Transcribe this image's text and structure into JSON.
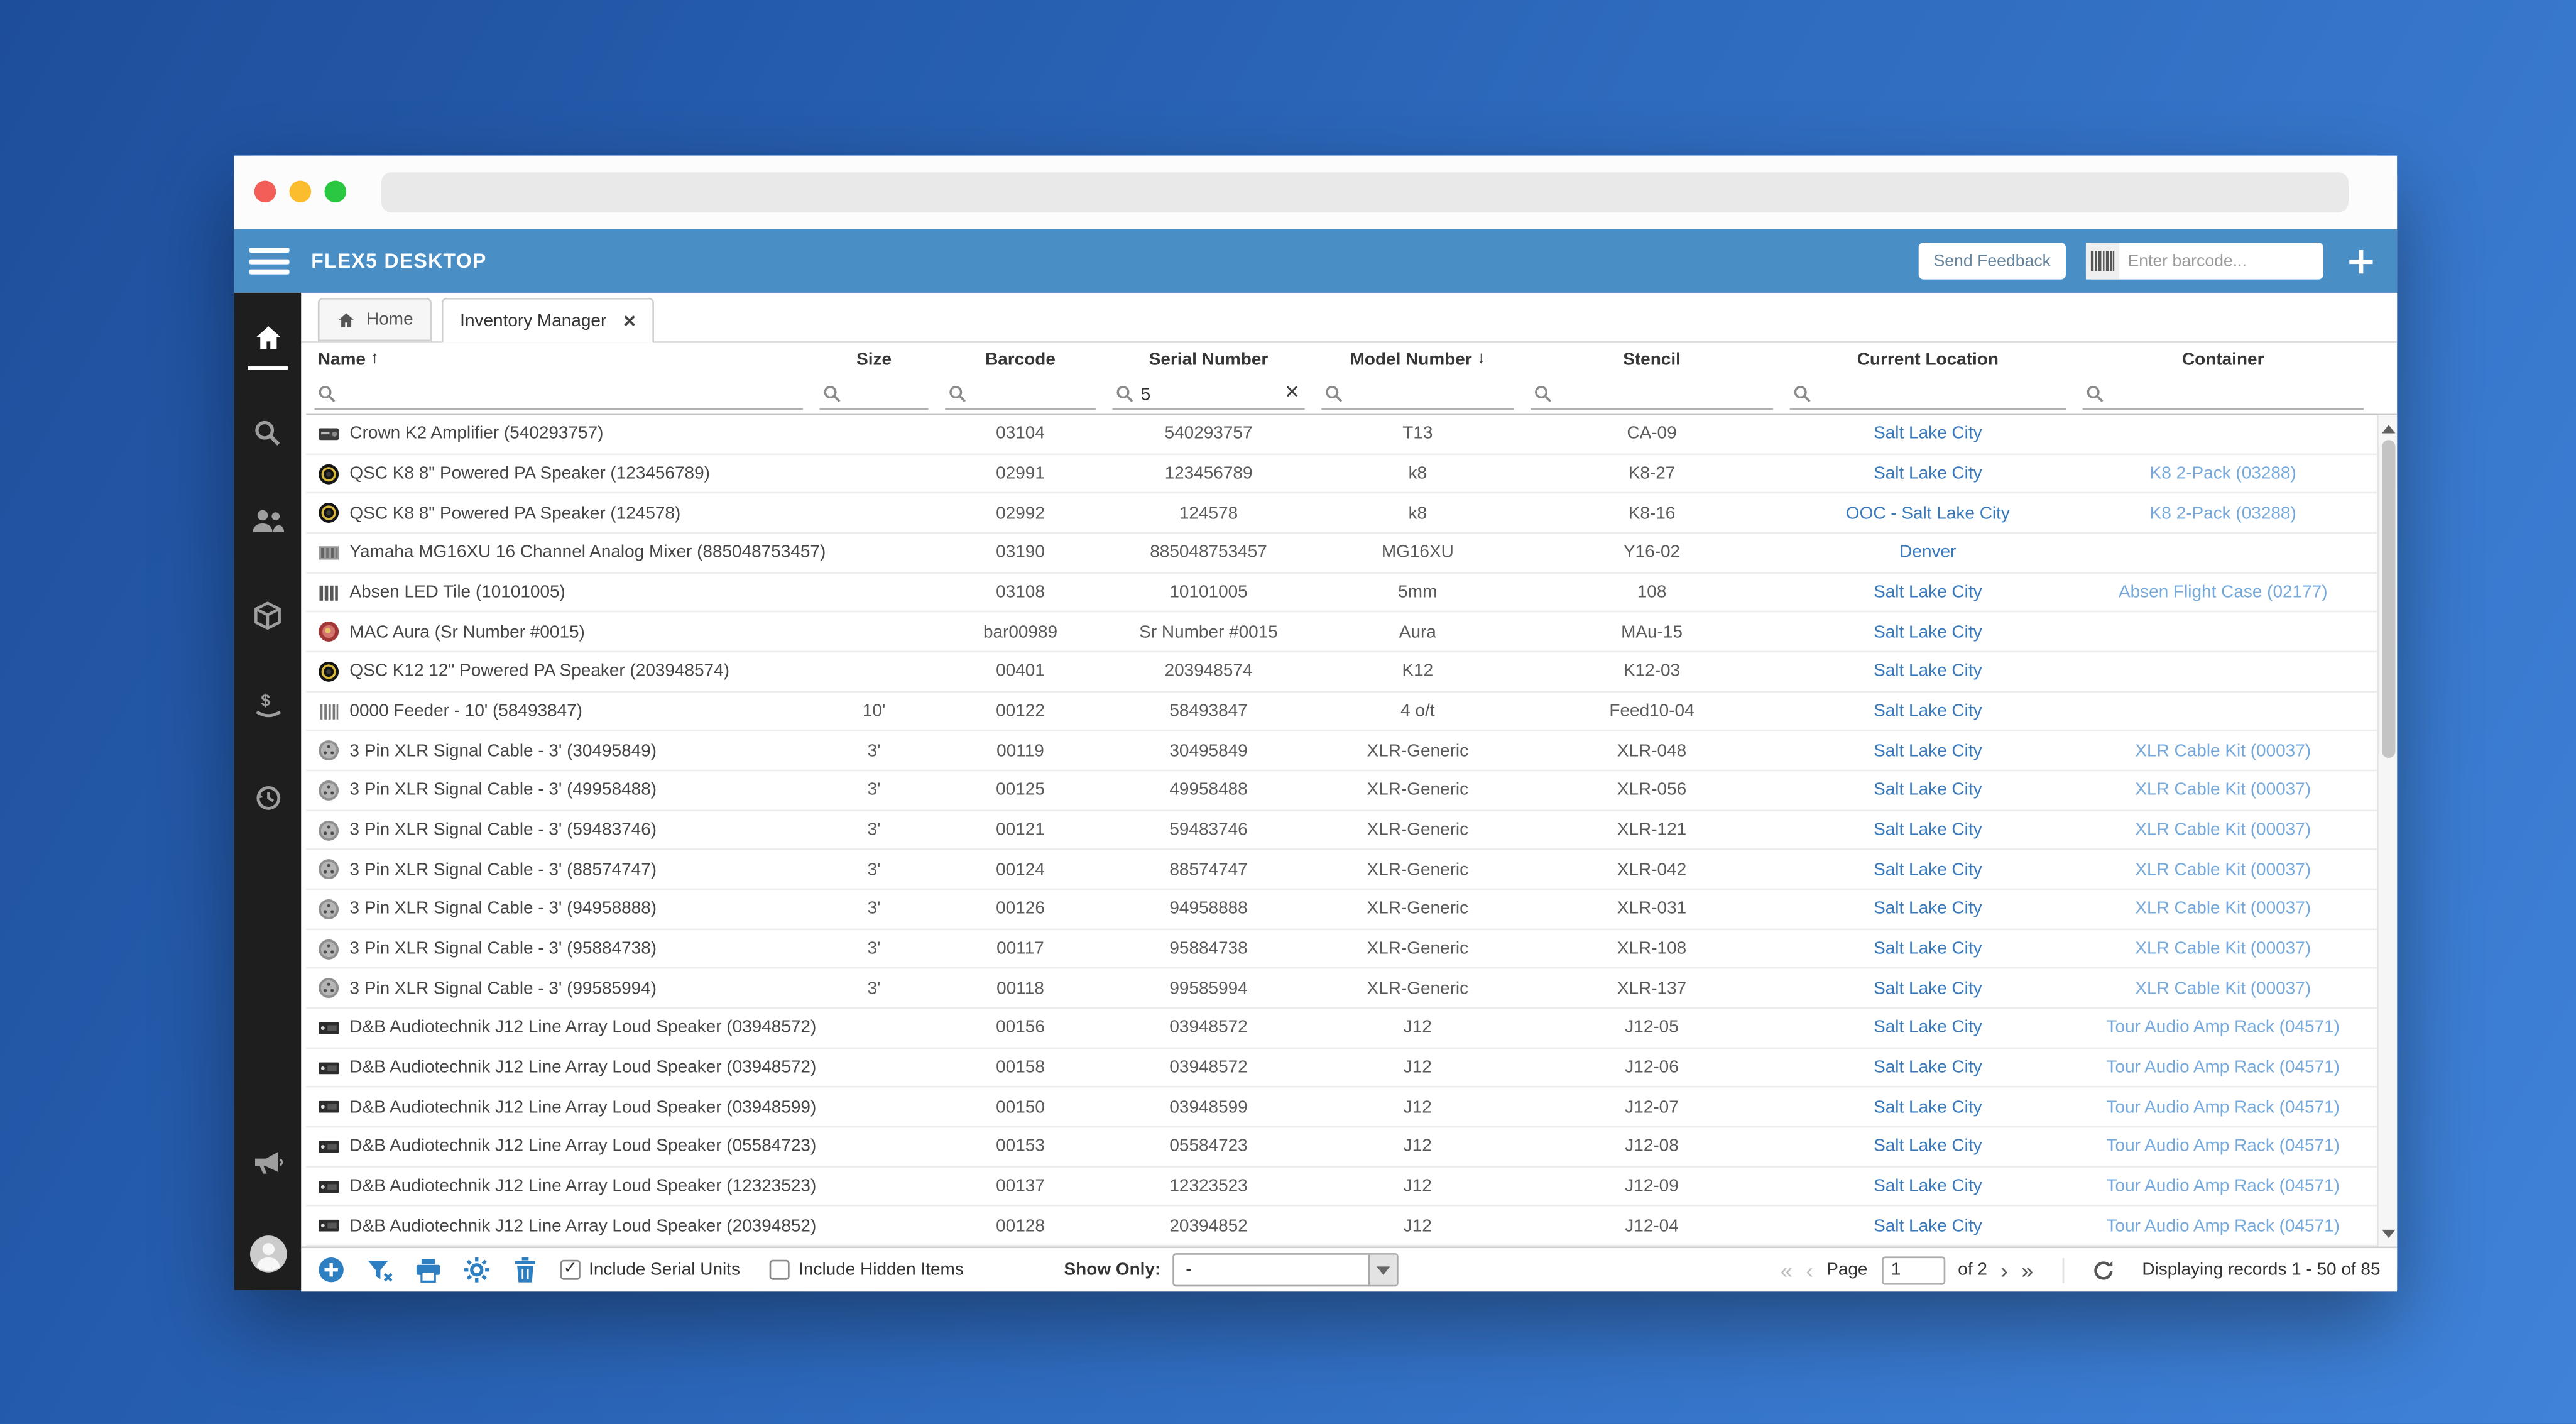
{
  "appbar": {
    "title": "FLEX5 DESKTOP",
    "send_feedback_label": "Send Feedback",
    "barcode_placeholder": "Enter barcode..."
  },
  "tabs": {
    "home": "Home",
    "inventory_manager": "Inventory Manager"
  },
  "table": {
    "columns": [
      {
        "label": "Name",
        "sort": "↑"
      },
      {
        "label": "Size",
        "sort": ""
      },
      {
        "label": "Barcode",
        "sort": ""
      },
      {
        "label": "Serial Number",
        "sort": ""
      },
      {
        "label": "Model Number",
        "sort": "↓"
      },
      {
        "label": "Stencil",
        "sort": ""
      },
      {
        "label": "Current Location",
        "sort": ""
      },
      {
        "label": "Container",
        "sort": ""
      }
    ],
    "filters": {
      "serial_number": "5"
    },
    "rows": [
      {
        "icon": "amp",
        "name": "Crown K2 Amplifier (540293757)",
        "size": "",
        "barcode": "03104",
        "serial": "540293757",
        "model": "T13",
        "stencil": "CA-09",
        "location": "Salt Lake City",
        "container": ""
      },
      {
        "icon": "qsc",
        "name": "QSC K8 8\" Powered PA Speaker (123456789)",
        "size": "",
        "barcode": "02991",
        "serial": "123456789",
        "model": "k8",
        "stencil": "K8-27",
        "location": "Salt Lake City",
        "container": "K8 2-Pack (03288)"
      },
      {
        "icon": "qsc",
        "name": "QSC K8 8\" Powered PA Speaker (124578)",
        "size": "",
        "barcode": "02992",
        "serial": "124578",
        "model": "k8",
        "stencil": "K8-16",
        "location": "OOC - Salt Lake City",
        "container": "K8 2-Pack (03288)"
      },
      {
        "icon": "mixer",
        "name": "Yamaha MG16XU 16 Channel Analog Mixer (885048753457)",
        "size": "",
        "barcode": "03190",
        "serial": "885048753457",
        "model": "MG16XU",
        "stencil": "Y16-02",
        "location": "Denver",
        "container": ""
      },
      {
        "icon": "led",
        "name": "Absen LED Tile (10101005)",
        "size": "",
        "barcode": "03108",
        "serial": "10101005",
        "model": "5mm",
        "stencil": "108",
        "location": "Salt Lake City",
        "container": "Absen Flight Case (02177)"
      },
      {
        "icon": "aura",
        "name": "MAC Aura (Sr Number #0015)",
        "size": "",
        "barcode": "bar00989",
        "serial": "Sr Number #0015",
        "model": "Aura",
        "stencil": "MAu-15",
        "location": "Salt Lake City",
        "container": ""
      },
      {
        "icon": "qsc",
        "name": "QSC K12 12\" Powered PA Speaker (203948574)",
        "size": "",
        "barcode": "00401",
        "serial": "203948574",
        "model": "K12",
        "stencil": "K12-03",
        "location": "Salt Lake City",
        "container": ""
      },
      {
        "icon": "feeder",
        "name": "0000 Feeder - 10' (58493847)",
        "size": "10'",
        "barcode": "00122",
        "serial": "58493847",
        "model": "4 o/t",
        "stencil": "Feed10-04",
        "location": "Salt Lake City",
        "container": ""
      },
      {
        "icon": "xlr",
        "name": "3 Pin XLR Signal Cable - 3' (30495849)",
        "size": "3'",
        "barcode": "00119",
        "serial": "30495849",
        "model": "XLR-Generic",
        "stencil": "XLR-048",
        "location": "Salt Lake City",
        "container": "XLR Cable Kit (00037)"
      },
      {
        "icon": "xlr",
        "name": "3 Pin XLR Signal Cable - 3' (49958488)",
        "size": "3'",
        "barcode": "00125",
        "serial": "49958488",
        "model": "XLR-Generic",
        "stencil": "XLR-056",
        "location": "Salt Lake City",
        "container": "XLR Cable Kit (00037)"
      },
      {
        "icon": "xlr",
        "name": "3 Pin XLR Signal Cable - 3' (59483746)",
        "size": "3'",
        "barcode": "00121",
        "serial": "59483746",
        "model": "XLR-Generic",
        "stencil": "XLR-121",
        "location": "Salt Lake City",
        "container": "XLR Cable Kit (00037)"
      },
      {
        "icon": "xlr",
        "name": "3 Pin XLR Signal Cable - 3' (88574747)",
        "size": "3'",
        "barcode": "00124",
        "serial": "88574747",
        "model": "XLR-Generic",
        "stencil": "XLR-042",
        "location": "Salt Lake City",
        "container": "XLR Cable Kit (00037)"
      },
      {
        "icon": "xlr",
        "name": "3 Pin XLR Signal Cable - 3' (94958888)",
        "size": "3'",
        "barcode": "00126",
        "serial": "94958888",
        "model": "XLR-Generic",
        "stencil": "XLR-031",
        "location": "Salt Lake City",
        "container": "XLR Cable Kit (00037)"
      },
      {
        "icon": "xlr",
        "name": "3 Pin XLR Signal Cable - 3' (95884738)",
        "size": "3'",
        "barcode": "00117",
        "serial": "95884738",
        "model": "XLR-Generic",
        "stencil": "XLR-108",
        "location": "Salt Lake City",
        "container": "XLR Cable Kit (00037)"
      },
      {
        "icon": "xlr",
        "name": "3 Pin XLR Signal Cable - 3' (99585994)",
        "size": "3'",
        "barcode": "00118",
        "serial": "99585994",
        "model": "XLR-Generic",
        "stencil": "XLR-137",
        "location": "Salt Lake City",
        "container": "XLR Cable Kit (00037)"
      },
      {
        "icon": "db",
        "name": "D&B Audiotechnik J12 Line Array Loud Speaker (03948572)",
        "size": "",
        "barcode": "00156",
        "serial": "03948572",
        "model": "J12",
        "stencil": "J12-05",
        "location": "Salt Lake City",
        "container": "Tour Audio Amp Rack (04571)"
      },
      {
        "icon": "db",
        "name": "D&B Audiotechnik J12 Line Array Loud Speaker (03948572)",
        "size": "",
        "barcode": "00158",
        "serial": "03948572",
        "model": "J12",
        "stencil": "J12-06",
        "location": "Salt Lake City",
        "container": "Tour Audio Amp Rack (04571)"
      },
      {
        "icon": "db",
        "name": "D&B Audiotechnik J12 Line Array Loud Speaker (03948599)",
        "size": "",
        "barcode": "00150",
        "serial": "03948599",
        "model": "J12",
        "stencil": "J12-07",
        "location": "Salt Lake City",
        "container": "Tour Audio Amp Rack (04571)"
      },
      {
        "icon": "db",
        "name": "D&B Audiotechnik J12 Line Array Loud Speaker (05584723)",
        "size": "",
        "barcode": "00153",
        "serial": "05584723",
        "model": "J12",
        "stencil": "J12-08",
        "location": "Salt Lake City",
        "container": "Tour Audio Amp Rack (04571)"
      },
      {
        "icon": "db",
        "name": "D&B Audiotechnik J12 Line Array Loud Speaker (12323523)",
        "size": "",
        "barcode": "00137",
        "serial": "12323523",
        "model": "J12",
        "stencil": "J12-09",
        "location": "Salt Lake City",
        "container": "Tour Audio Amp Rack (04571)"
      },
      {
        "icon": "db",
        "name": "D&B Audiotechnik J12 Line Array Loud Speaker (20394852)",
        "size": "",
        "barcode": "00128",
        "serial": "20394852",
        "model": "J12",
        "stencil": "J12-04",
        "location": "Salt Lake City",
        "container": "Tour Audio Amp Rack (04571)"
      }
    ]
  },
  "footer": {
    "include_serial_units": "Include Serial Units",
    "include_hidden_items": "Include Hidden Items",
    "serial_units_checked": "✓",
    "show_only_label": "Show Only:",
    "show_only_value": "-",
    "page_label": "Page",
    "page_number": "1",
    "page_of": "of 2",
    "first_glyph": "«",
    "prev_glyph": "‹",
    "next_glyph": "›",
    "last_glyph": "»",
    "records": "Displaying records 1 - 50 of 85"
  },
  "colors": {
    "appbar_blue": "#4a8ec6",
    "sidebar_dark": "#1e1e1e",
    "toolbar_icon_blue": "#2d7fc1",
    "location_link": "#3879bd",
    "container_link": "#76a9db"
  }
}
